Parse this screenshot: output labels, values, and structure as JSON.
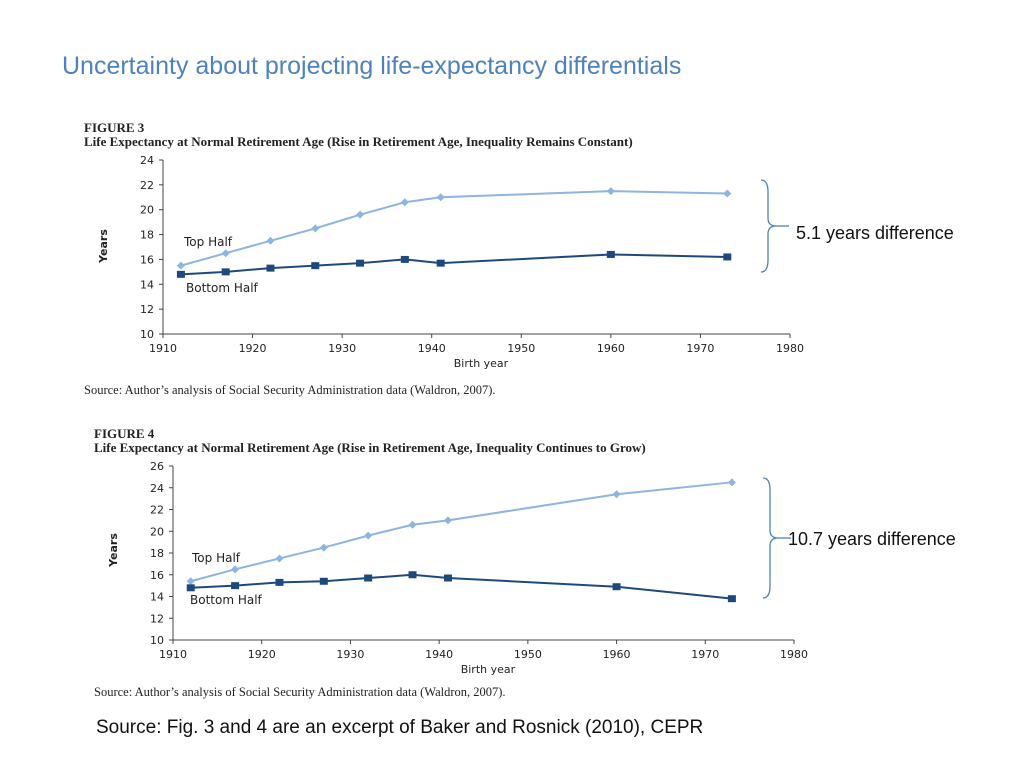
{
  "slide": {
    "title": "Uncertainty about projecting life-expectancy differentials",
    "source": "Source: Fig. 3 and 4 are an excerpt of Baker and Rosnick (2010), CEPR"
  },
  "colors": {
    "top_half": "#8db4e2",
    "bottom_half": "#1f497d",
    "title": "#4f81bd"
  },
  "chart_data": [
    {
      "type": "line",
      "figure_label": "FIGURE 3",
      "title": "Life Expectancy at Normal Retirement Age (Rise in Retirement Age, Inequality Remains Constant)",
      "xlabel": "Birth year",
      "ylabel": "Years",
      "xlim": [
        1910,
        1980
      ],
      "ylim": [
        10,
        24
      ],
      "xticks": [
        1910,
        1920,
        1930,
        1940,
        1950,
        1960,
        1970,
        1980
      ],
      "yticks": [
        10,
        12,
        14,
        16,
        18,
        20,
        22,
        24
      ],
      "series": [
        {
          "name": "Top Half",
          "x": [
            1912,
            1917,
            1922,
            1927,
            1932,
            1937,
            1941,
            1960,
            1973
          ],
          "values": [
            15.5,
            16.5,
            17.5,
            18.5,
            19.6,
            20.6,
            21.0,
            21.5,
            21.3
          ]
        },
        {
          "name": "Bottom Half",
          "x": [
            1912,
            1917,
            1922,
            1927,
            1932,
            1937,
            1941,
            1960,
            1973
          ],
          "values": [
            14.8,
            15.0,
            15.3,
            15.5,
            15.7,
            16.0,
            15.7,
            16.4,
            16.2
          ]
        }
      ],
      "source": "Source: Author’s analysis of Social Security Administration data (Waldron, 2007).",
      "annotation": "5.1 years difference"
    },
    {
      "type": "line",
      "figure_label": "FIGURE 4",
      "title": "Life Expectancy at Normal Retirement Age (Rise in Retirement Age, Inequality Continues to Grow)",
      "xlabel": "Birth year",
      "ylabel": "Years",
      "xlim": [
        1910,
        1980
      ],
      "ylim": [
        10,
        26
      ],
      "xticks": [
        1910,
        1920,
        1930,
        1940,
        1950,
        1960,
        1970,
        1980
      ],
      "yticks": [
        10,
        12,
        14,
        16,
        18,
        20,
        22,
        24,
        26
      ],
      "series": [
        {
          "name": "Top Half",
          "x": [
            1912,
            1917,
            1922,
            1927,
            1932,
            1937,
            1941,
            1960,
            1973
          ],
          "values": [
            15.4,
            16.5,
            17.5,
            18.5,
            19.6,
            20.6,
            21.0,
            23.4,
            24.5
          ]
        },
        {
          "name": "Bottom Half",
          "x": [
            1912,
            1917,
            1922,
            1927,
            1932,
            1937,
            1941,
            1960,
            1973
          ],
          "values": [
            14.8,
            15.0,
            15.3,
            15.4,
            15.7,
            16.0,
            15.7,
            14.9,
            13.8
          ]
        }
      ],
      "source": "Source: Author’s analysis of Social Security Administration data (Waldron, 2007).",
      "annotation": "10.7 years difference"
    }
  ]
}
